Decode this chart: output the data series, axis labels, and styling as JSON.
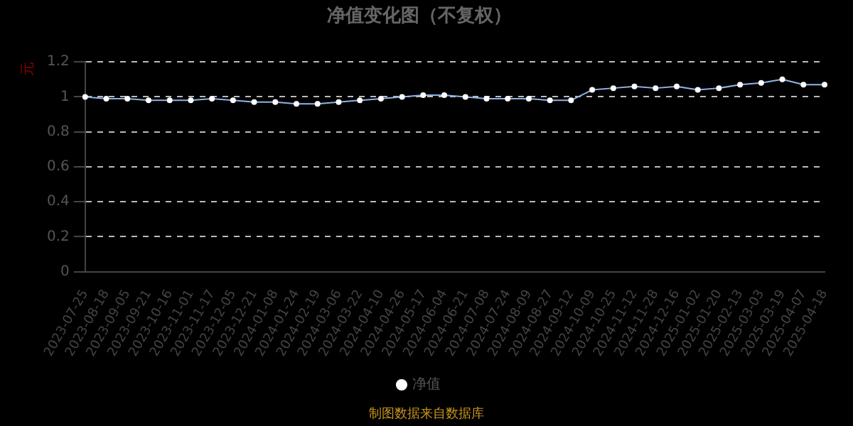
{
  "chart_data": {
    "type": "line",
    "title": "净值变化图（不复权）",
    "ylabel": "元",
    "categories": [
      "2023-07-25",
      "2023-08-18",
      "2023-09-05",
      "2023-09-21",
      "2023-10-16",
      "2023-11-01",
      "2023-11-17",
      "2023-12-05",
      "2023-12-21",
      "2024-01-08",
      "2024-01-24",
      "2024-02-19",
      "2024-03-06",
      "2024-03-22",
      "2024-04-10",
      "2024-04-26",
      "2024-05-17",
      "2024-06-04",
      "2024-06-21",
      "2024-07-08",
      "2024-07-24",
      "2024-08-09",
      "2024-08-27",
      "2024-09-12",
      "2024-10-09",
      "2024-10-25",
      "2024-11-12",
      "2024-11-28",
      "2024-12-16",
      "2025-01-02",
      "2025-01-20",
      "2025-02-13",
      "2025-03-03",
      "2025-03-19",
      "2025-04-07",
      "2025-04-18"
    ],
    "series": [
      {
        "name": "净值",
        "color": "#8fb4e3",
        "values": [
          1.0,
          0.99,
          0.99,
          0.98,
          0.98,
          0.98,
          0.99,
          0.98,
          0.97,
          0.97,
          0.96,
          0.96,
          0.97,
          0.98,
          0.99,
          1.0,
          1.01,
          1.01,
          1.0,
          0.99,
          0.99,
          0.99,
          0.98,
          0.98,
          1.04,
          1.05,
          1.06,
          1.05,
          1.06,
          1.04,
          1.05,
          1.07,
          1.08,
          1.1,
          1.07,
          1.07
        ]
      }
    ],
    "ylim": [
      0,
      1.2
    ],
    "yticks": [
      0,
      0.2,
      0.4,
      0.6,
      0.8,
      1,
      1.2
    ],
    "grid": "y",
    "legend": "bottom",
    "marker": "circle",
    "line_style": "solid",
    "annotations": [
      "制图数据来自数据库"
    ]
  }
}
